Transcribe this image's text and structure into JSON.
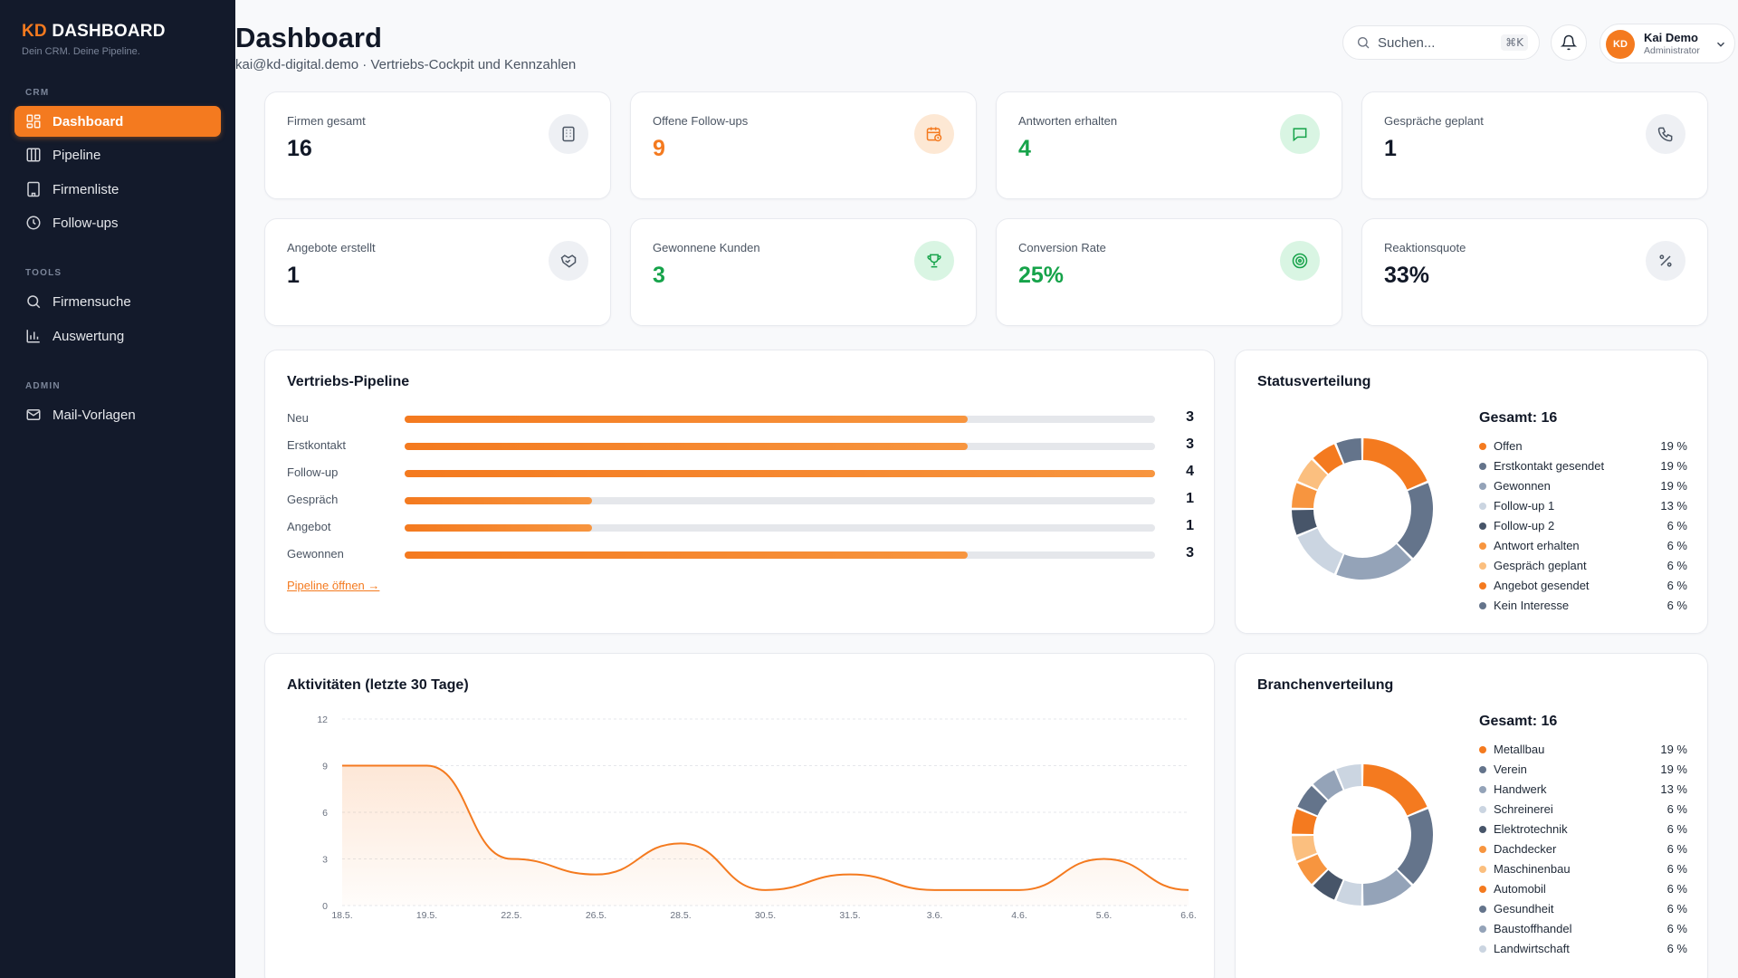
{
  "sidebar": {
    "brand_prefix": "KD",
    "brand_name": "DASHBOARD",
    "tagline": "Dein CRM. Deine Pipeline.",
    "sections": [
      {
        "label": "CRM",
        "items": [
          {
            "label": "Dashboard",
            "icon": "grid-icon",
            "active": true
          },
          {
            "label": "Pipeline",
            "icon": "columns-icon"
          },
          {
            "label": "Firmenliste",
            "icon": "building-icon"
          },
          {
            "label": "Follow-ups",
            "icon": "clock-icon"
          }
        ]
      },
      {
        "label": "TOOLS",
        "items": [
          {
            "label": "Firmensuche",
            "icon": "search-icon"
          },
          {
            "label": "Auswertung",
            "icon": "bar-chart-icon"
          }
        ]
      },
      {
        "label": "ADMIN",
        "items": [
          {
            "label": "Mail-Vorlagen",
            "icon": "mail-icon"
          }
        ]
      }
    ]
  },
  "header": {
    "title": "Dashboard",
    "subtitle": "kai@kd-digital.demo · Vertriebs-Cockpit und Kennzahlen",
    "search_placeholder": "Suchen...",
    "search_shortcut": "⌘K",
    "user": {
      "initials": "KD",
      "name": "Kai Demo",
      "role": "Administrator"
    }
  },
  "kpis": [
    {
      "label": "Firmen gesamt",
      "value": "16",
      "icon": "building-icon",
      "tone": "dark"
    },
    {
      "label": "Offene Follow-ups",
      "value": "9",
      "icon": "calendar-clock-icon",
      "tone": "orange"
    },
    {
      "label": "Antworten erhalten",
      "value": "4",
      "icon": "message-icon",
      "tone": "green"
    },
    {
      "label": "Gespräche geplant",
      "value": "1",
      "icon": "phone-icon",
      "tone": "dark"
    },
    {
      "label": "Angebote erstellt",
      "value": "1",
      "icon": "handshake-icon",
      "tone": "dark"
    },
    {
      "label": "Gewonnene Kunden",
      "value": "3",
      "icon": "trophy-icon",
      "tone": "green"
    },
    {
      "label": "Conversion Rate",
      "value": "25%",
      "icon": "target-icon",
      "tone": "green"
    },
    {
      "label": "Reaktionsquote",
      "value": "33%",
      "icon": "percent-icon",
      "tone": "dark"
    }
  ],
  "pipeline": {
    "title": "Vertriebs-Pipeline",
    "max": 4,
    "stages": [
      {
        "label": "Neu",
        "value": 3
      },
      {
        "label": "Erstkontakt",
        "value": 3
      },
      {
        "label": "Follow-up",
        "value": 4
      },
      {
        "label": "Gespräch",
        "value": 1
      },
      {
        "label": "Angebot",
        "value": 1
      },
      {
        "label": "Gewonnen",
        "value": 3
      }
    ],
    "link": "Pipeline öffnen →"
  },
  "status": {
    "title": "Statusverteilung",
    "total_label": "Gesamt: 16",
    "items": [
      {
        "label": "Offen",
        "pct": "19 %",
        "value": 3,
        "color": "#f47a1f"
      },
      {
        "label": "Erstkontakt gesendet",
        "pct": "19 %",
        "value": 3,
        "color": "#64748b"
      },
      {
        "label": "Gewonnen",
        "pct": "19 %",
        "value": 3,
        "color": "#94a3b8"
      },
      {
        "label": "Follow-up 1",
        "pct": "13 %",
        "value": 2,
        "color": "#cbd5e1"
      },
      {
        "label": "Follow-up 2",
        "pct": "6 %",
        "value": 1,
        "color": "#475569"
      },
      {
        "label": "Antwort erhalten",
        "pct": "6 %",
        "value": 1,
        "color": "#f7953f"
      },
      {
        "label": "Gespräch geplant",
        "pct": "6 %",
        "value": 1,
        "color": "#fbbf7f"
      },
      {
        "label": "Angebot gesendet",
        "pct": "6 %",
        "value": 1,
        "color": "#f47a1f"
      },
      {
        "label": "Kein Interesse",
        "pct": "6 %",
        "value": 1,
        "color": "#64748b"
      }
    ]
  },
  "branches": {
    "title": "Branchenverteilung",
    "total_label": "Gesamt: 16",
    "items": [
      {
        "label": "Metallbau",
        "pct": "19 %",
        "value": 3,
        "color": "#f47a1f"
      },
      {
        "label": "Verein",
        "pct": "19 %",
        "value": 3,
        "color": "#64748b"
      },
      {
        "label": "Handwerk",
        "pct": "13 %",
        "value": 2,
        "color": "#94a3b8"
      },
      {
        "label": "Schreinerei",
        "pct": "6 %",
        "value": 1,
        "color": "#cbd5e1"
      },
      {
        "label": "Elektrotechnik",
        "pct": "6 %",
        "value": 1,
        "color": "#475569"
      },
      {
        "label": "Dachdecker",
        "pct": "6 %",
        "value": 1,
        "color": "#f7953f"
      },
      {
        "label": "Maschinenbau",
        "pct": "6 %",
        "value": 1,
        "color": "#fbbf7f"
      },
      {
        "label": "Automobil",
        "pct": "6 %",
        "value": 1,
        "color": "#f47a1f"
      },
      {
        "label": "Gesundheit",
        "pct": "6 %",
        "value": 1,
        "color": "#64748b"
      },
      {
        "label": "Baustoffhandel",
        "pct": "6 %",
        "value": 1,
        "color": "#94a3b8"
      },
      {
        "label": "Landwirtschaft",
        "pct": "6 %",
        "value": 1,
        "color": "#cbd5e1"
      }
    ]
  },
  "chart_data": {
    "type": "area",
    "title": "Aktivitäten (letzte 30 Tage)",
    "x_ticks": [
      "18.5.",
      "19.5.",
      "22.5.",
      "26.5.",
      "28.5.",
      "30.5.",
      "31.5.",
      "3.6.",
      "4.6.",
      "5.6.",
      "6.6."
    ],
    "y_ticks": [
      0,
      3,
      6,
      9,
      12
    ],
    "ylim": [
      0,
      12
    ],
    "series": [
      {
        "values": [
          9,
          9,
          3,
          2,
          4,
          1,
          2,
          1,
          1,
          3,
          1
        ]
      }
    ],
    "color": "#f47a1f",
    "grid": true
  }
}
